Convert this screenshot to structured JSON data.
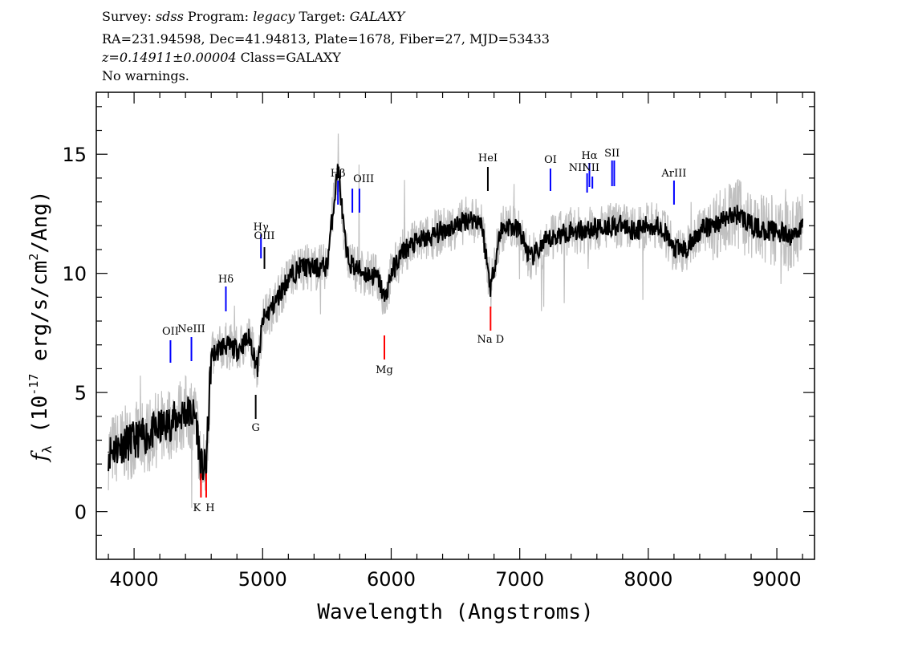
{
  "header": {
    "survey_label": "Survey:",
    "survey": "sdss",
    "program_label": "Program:",
    "program": "legacy",
    "target_label": "Target:",
    "target": "GALAXY",
    "line2": "RA=231.94598, Dec=41.94813, Plate=1678, Fiber=27, MJD=53433",
    "redshift": "z=0.14911±0.00004",
    "class": "Class=GALAXY",
    "warnings": "No warnings."
  },
  "chart_data": {
    "type": "line",
    "title": "",
    "xlabel": "Wavelength (Angstroms)",
    "ylabel": "f_λ (10^-17 erg/s/cm^2/Ang)",
    "xlim": [
      3706,
      9293
    ],
    "ylim": [
      -2.0,
      17.6
    ],
    "x_ticks": [
      4000,
      5000,
      6000,
      7000,
      8000,
      9000
    ],
    "y_ticks": [
      0,
      5,
      10,
      15
    ],
    "grid": false,
    "colors": {
      "flux": "#c0c0c0",
      "smoothed": "#000000",
      "emission": "#0000ff",
      "absorption": "#ff0000"
    },
    "series": [
      {
        "x": [
          3800,
          3900,
          4000,
          4100,
          4200,
          4300,
          4400,
          4480,
          4520,
          4560,
          4600,
          4700,
          4800,
          4900,
          4960,
          5000,
          5100,
          5200,
          5300,
          5400,
          5500,
          5586,
          5650,
          5700,
          5800,
          5900,
          5950,
          6000,
          6100,
          6200,
          6300,
          6400,
          6500,
          6600,
          6700,
          6773,
          6850,
          6900,
          7000,
          7080,
          7200,
          7300,
          7400,
          7500,
          7600,
          7700,
          7800,
          7900,
          8000,
          8100,
          8200,
          8300,
          8400,
          8500,
          8600,
          8700,
          8800,
          8900,
          9000,
          9100,
          9200
        ],
        "y": [
          2.5,
          2.8,
          3.0,
          3.2,
          3.5,
          3.8,
          4.2,
          4.0,
          1.9,
          1.8,
          6.5,
          7.0,
          6.8,
          7.3,
          6.0,
          8.0,
          8.8,
          9.8,
          10.3,
          10.2,
          10.3,
          14.5,
          10.8,
          10.3,
          10.0,
          9.8,
          8.9,
          10.0,
          11.0,
          11.3,
          11.5,
          11.8,
          12.0,
          12.3,
          12.2,
          9.4,
          11.8,
          12.0,
          11.8,
          10.6,
          11.3,
          11.6,
          11.8,
          11.8,
          11.9,
          12.0,
          12.0,
          11.8,
          12.0,
          12.0,
          11.0,
          11.0,
          11.8,
          12.0,
          12.3,
          12.5,
          12.0,
          11.8,
          11.8,
          11.5,
          12.0
        ]
      }
    ],
    "lines": [
      {
        "name": "OII",
        "wavelength": 4283,
        "type": "emission",
        "color": "#0000ff"
      },
      {
        "name": "NeIII",
        "wavelength": 4446,
        "type": "emission",
        "color": "#0000ff"
      },
      {
        "name": "K",
        "wavelength": 4520,
        "type": "absorption",
        "color": "#ff0000"
      },
      {
        "name": "H",
        "wavelength": 4561,
        "type": "absorption",
        "color": "#ff0000"
      },
      {
        "name": "Hδ",
        "wavelength": 4714,
        "type": "emission",
        "color": "#0000ff"
      },
      {
        "name": "G",
        "wavelength": 4946,
        "type": "absorption",
        "color": "#000000"
      },
      {
        "name": "Hγ",
        "wavelength": 4987,
        "type": "emission",
        "color": "#0000ff"
      },
      {
        "name": "OIII",
        "wavelength": 5014,
        "type": "emission",
        "color": "#000000"
      },
      {
        "name": "Hβ",
        "wavelength": 5586,
        "type": "emission",
        "color": "#0000ff"
      },
      {
        "name": "OIII",
        "wavelength": 5698,
        "type": "emission",
        "color": "#0000ff"
      },
      {
        "name": "",
        "wavelength": 5753,
        "type": "emission",
        "color": "#0000ff"
      },
      {
        "name": "Mg",
        "wavelength": 5947,
        "type": "absorption",
        "color": "#ff0000"
      },
      {
        "name": "HeI",
        "wavelength": 6752,
        "type": "emission",
        "color": "#000000"
      },
      {
        "name": "Na D",
        "wavelength": 6773,
        "type": "absorption",
        "color": "#ff0000"
      },
      {
        "name": "OI",
        "wavelength": 7239,
        "type": "emission",
        "color": "#0000ff"
      },
      {
        "name": "NII",
        "wavelength": 7524,
        "type": "emission",
        "color": "#0000ff"
      },
      {
        "name": "Hα",
        "wavelength": 7542,
        "type": "emission",
        "color": "#0000ff"
      },
      {
        "name": "NII",
        "wavelength": 7565,
        "type": "emission",
        "color": "#0000ff"
      },
      {
        "name": "SII",
        "wavelength": 7718,
        "type": "emission",
        "color": "#0000ff"
      },
      {
        "name": "",
        "wavelength": 7735,
        "type": "emission",
        "color": "#0000ff"
      },
      {
        "name": "ArIII",
        "wavelength": 8200,
        "type": "emission",
        "color": "#0000ff"
      }
    ]
  }
}
